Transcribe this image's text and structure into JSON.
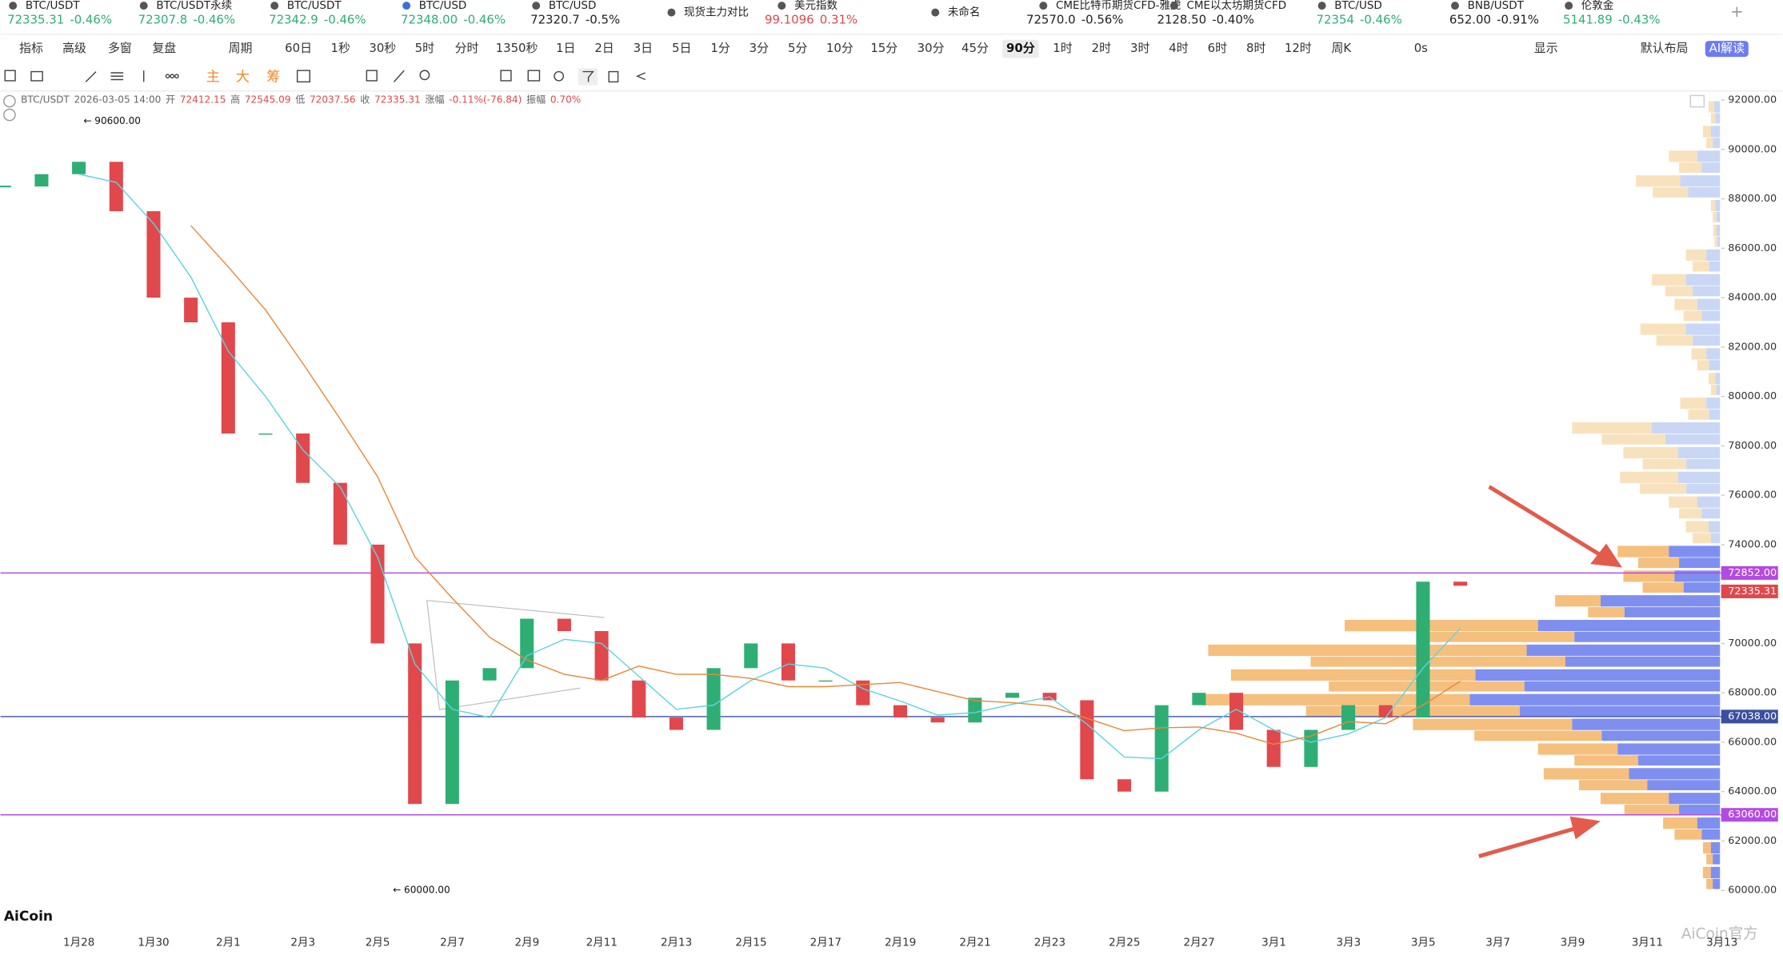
{
  "tickers": [
    {
      "name": "BTC/USDT",
      "price": "72335.31",
      "change": "-0.46%",
      "color": "#2fae74",
      "selected": true
    },
    {
      "name": "BTC/USDT永续",
      "price": "72307.8",
      "change": "-0.46%",
      "color": "#2fae74"
    },
    {
      "name": "BTC/USDT",
      "price": "72342.9",
      "change": "-0.46%",
      "color": "#2fae74"
    },
    {
      "name": "BTC/USD",
      "price": "72348.00",
      "change": "-0.46%",
      "color": "#2fae74"
    },
    {
      "name": "BTC/USD",
      "price": "72320.7",
      "change": "-0.5%",
      "color": "#222222"
    },
    {
      "name": "现货主力对比"
    },
    {
      "name": "美元指数",
      "price": "99.1096",
      "change": "0.31%",
      "color": "#e0484c"
    },
    {
      "name": "未命名"
    },
    {
      "name": "CME比特币期货CFD-雅虎",
      "price": "72570.0",
      "change": "-0.56%",
      "color": "#222222"
    },
    {
      "name": "CME以太坊期货CFD",
      "price": "2128.50",
      "change": "-0.40%",
      "color": "#222222"
    },
    {
      "name": "BTC/USD",
      "price": "72354",
      "change": "-0.46%",
      "color": "#2fae74"
    },
    {
      "name": "BNB/USDT",
      "price": "652.00",
      "change": "-0.91%",
      "color": "#222222"
    },
    {
      "name": "伦敦金",
      "price": "5141.89",
      "change": "-0.43%",
      "color": "#2fae74"
    }
  ],
  "toolbar": {
    "items": [
      "指标",
      "高级",
      "多窗",
      "复盘",
      "周期",
      "60日",
      "1秒",
      "30秒",
      "5时",
      "分时",
      "1350秒",
      "1日",
      "2日",
      "3日",
      "5日",
      "1分",
      "3分",
      "5分",
      "10分",
      "15分",
      "30分",
      "45分",
      "90分",
      "1时",
      "2时",
      "3时",
      "4时",
      "6时",
      "8时",
      "12时",
      "周K",
      "0s",
      "显示",
      "默认布局",
      "AI解读"
    ],
    "active": "90分"
  },
  "drawing_tools": [
    "主",
    "大",
    "筹"
  ],
  "info": {
    "symbol": "BTC/USDT",
    "datetime": "2026-03-05 14:00",
    "fields": [
      {
        "label": "开",
        "value": "72412.15"
      },
      {
        "label": "高",
        "value": "72545.09"
      },
      {
        "label": "低",
        "value": "72037.56"
      },
      {
        "label": "收",
        "value": "72335.31"
      },
      {
        "label": "涨幅",
        "value": "-0.11%(-76.84)"
      },
      {
        "label": "振幅",
        "value": "0.70%"
      }
    ]
  },
  "chart": {
    "ylim": [
      60000,
      92000
    ],
    "yticks": [
      {
        "value": 60000,
        "label": "60000.00"
      },
      {
        "value": 62000,
        "label": "62000.00"
      },
      {
        "value": 64000,
        "label": "64000.00"
      },
      {
        "value": 66000,
        "label": "66000.00"
      },
      {
        "value": 68000,
        "label": "68000.00"
      },
      {
        "value": 70000,
        "label": "70000.00"
      },
      {
        "value": 72000,
        "label": "72000.00"
      },
      {
        "value": 74000,
        "label": "74000.00"
      },
      {
        "value": 76000,
        "label": "76000.00"
      },
      {
        "value": 78000,
        "label": "78000.00"
      },
      {
        "value": 80000,
        "label": "80000.00"
      },
      {
        "value": 82000,
        "label": "82000.00"
      },
      {
        "value": 84000,
        "label": "84000.00"
      },
      {
        "value": 86000,
        "label": "86000.00"
      },
      {
        "value": 88000,
        "label": "88000.00"
      },
      {
        "value": 90000,
        "label": "90000.00"
      },
      {
        "value": 92000,
        "label": "92000.00"
      }
    ],
    "dates": [
      "1月28",
      "1月30",
      "2月1",
      "2月3",
      "2月5",
      "2月7",
      "2月9",
      "2月11",
      "2月13",
      "2月15",
      "2月17",
      "2月19",
      "2月21",
      "2月23",
      "2月25",
      "2月27",
      "3月1",
      "3月3",
      "3月5",
      "3月7",
      "3月9",
      "3月11",
      "3月13"
    ],
    "closes": [
      88500,
      89000,
      89500,
      87500,
      84000,
      83000,
      78500,
      78500,
      76500,
      74000,
      70000,
      63500,
      68500,
      69000,
      71000,
      70500,
      68500,
      67000,
      66500,
      69000,
      70000,
      68500,
      68500,
      67500,
      67000,
      66800,
      67800,
      68000,
      67700,
      64500,
      64000,
      67500,
      68000,
      66500,
      65000,
      66500,
      67500,
      67000,
      72500,
      72335.31
    ],
    "price_lines": [
      {
        "value": 72852,
        "label": "72852.00",
        "color": "#b44be1"
      },
      {
        "value": 72335.31,
        "label": "72335.31",
        "color": "#e0484c"
      },
      {
        "value": 67038,
        "label": "67038.00",
        "color": "#3a4f9e"
      },
      {
        "value": 63060,
        "label": "63060.00",
        "color": "#b44be1"
      }
    ],
    "annotations": [
      {
        "value": 90600,
        "label": "← 90600.00"
      },
      {
        "value": 60000,
        "label": "← 60000.00"
      }
    ]
  },
  "logo": "AiCoin",
  "watermark": "AiCoin官方"
}
